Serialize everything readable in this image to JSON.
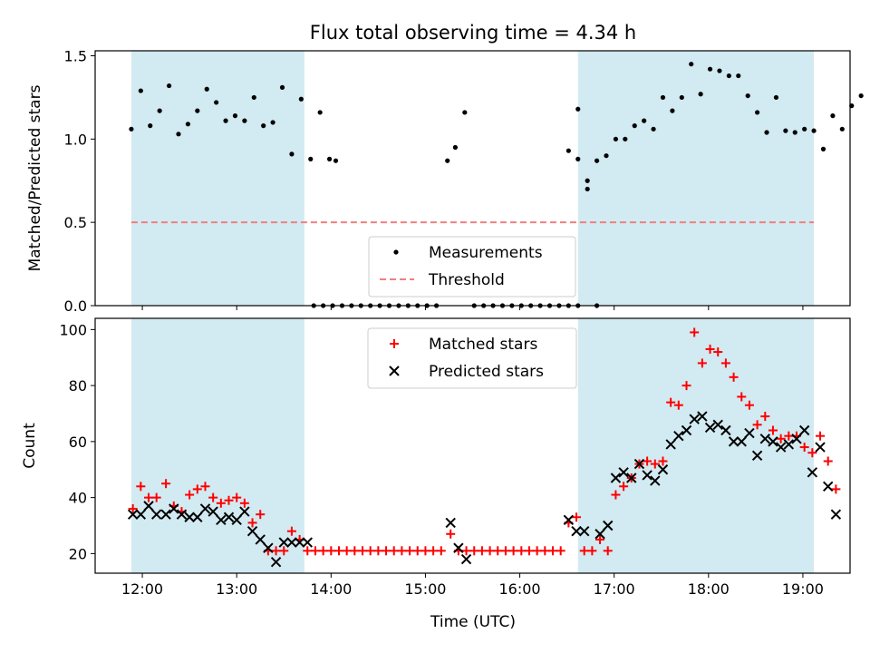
{
  "figure": {
    "title": "Flux total observing time = 4.34 h",
    "xlabel": "Time (UTC)"
  },
  "colors": {
    "shade": "#add8e6",
    "threshold": "#f08080",
    "matched": "#ff0000",
    "predicted": "#000000",
    "measure": "#000000"
  },
  "chart_data": [
    {
      "type": "scatter",
      "ylabel": "Matched/Predicted stars",
      "xlim": [
        "11:30",
        "19:30"
      ],
      "ylim": [
        0,
        1.53
      ],
      "yticks": [
        0.0,
        0.5,
        1.0,
        1.5
      ],
      "ytick_labels": [
        "0.0",
        "0.5",
        "1.0",
        "1.5"
      ],
      "xticks": [
        "12:00",
        "13:00",
        "14:00",
        "15:00",
        "16:00",
        "17:00",
        "18:00",
        "19:00"
      ],
      "shaded_spans": [
        [
          "11:53",
          "13:43"
        ],
        [
          "16:37",
          "19:07"
        ]
      ],
      "threshold": 0.5,
      "legend": {
        "position": "lower-center",
        "entries": [
          "Measurements",
          "Threshold"
        ]
      },
      "series": [
        {
          "name": "Measurements",
          "points": [
            [
              "11:53",
              1.06
            ],
            [
              "11:59",
              1.29
            ],
            [
              "12:05",
              1.08
            ],
            [
              "12:11",
              1.17
            ],
            [
              "12:17",
              1.32
            ],
            [
              "12:23",
              1.03
            ],
            [
              "12:29",
              1.09
            ],
            [
              "12:35",
              1.17
            ],
            [
              "12:41",
              1.3
            ],
            [
              "12:47",
              1.22
            ],
            [
              "12:53",
              1.11
            ],
            [
              "12:59",
              1.14
            ],
            [
              "13:05",
              1.11
            ],
            [
              "13:11",
              1.25
            ],
            [
              "13:17",
              1.08
            ],
            [
              "13:23",
              1.1
            ],
            [
              "13:29",
              1.31
            ],
            [
              "13:35",
              0.91
            ],
            [
              "13:41",
              1.24
            ],
            [
              "13:47",
              0.88
            ],
            [
              "13:53",
              1.16
            ],
            [
              "13:59",
              0.88
            ],
            [
              "14:03",
              0.87
            ],
            [
              "13:49",
              0
            ],
            [
              "13:55",
              0
            ],
            [
              "14:01",
              0
            ],
            [
              "14:07",
              0
            ],
            [
              "14:13",
              0
            ],
            [
              "14:19",
              0
            ],
            [
              "14:25",
              0
            ],
            [
              "14:31",
              0
            ],
            [
              "14:37",
              0
            ],
            [
              "14:43",
              0
            ],
            [
              "14:49",
              0
            ],
            [
              "14:55",
              0
            ],
            [
              "15:01",
              0
            ],
            [
              "15:07",
              0
            ],
            [
              "15:14",
              0.87
            ],
            [
              "15:19",
              0.95
            ],
            [
              "15:25",
              1.16
            ],
            [
              "15:31",
              0
            ],
            [
              "15:37",
              0
            ],
            [
              "15:43",
              0
            ],
            [
              "15:49",
              0
            ],
            [
              "15:55",
              0
            ],
            [
              "16:01",
              0
            ],
            [
              "16:07",
              0
            ],
            [
              "16:13",
              0
            ],
            [
              "16:19",
              0
            ],
            [
              "16:25",
              0
            ],
            [
              "16:31",
              0
            ],
            [
              "16:37",
              0
            ],
            [
              "16:31",
              0.93
            ],
            [
              "16:37",
              1.18
            ],
            [
              "16:43",
              0.75
            ],
            [
              "16:49",
              0
            ],
            [
              "16:37",
              0.88
            ],
            [
              "16:43",
              0.7
            ],
            [
              "16:49",
              0.87
            ],
            [
              "16:55",
              0.9
            ],
            [
              "17:01",
              1.0
            ],
            [
              "17:07",
              1.0
            ],
            [
              "17:13",
              1.08
            ],
            [
              "17:19",
              1.11
            ],
            [
              "17:25",
              1.06
            ],
            [
              "17:31",
              1.25
            ],
            [
              "17:37",
              1.17
            ],
            [
              "17:43",
              1.25
            ],
            [
              "17:49",
              1.45
            ],
            [
              "17:55",
              1.27
            ],
            [
              "18:01",
              1.42
            ],
            [
              "18:07",
              1.41
            ],
            [
              "18:13",
              1.38
            ],
            [
              "18:19",
              1.38
            ],
            [
              "18:25",
              1.26
            ],
            [
              "18:31",
              1.16
            ],
            [
              "18:37",
              1.04
            ],
            [
              "18:43",
              1.25
            ],
            [
              "18:49",
              1.05
            ],
            [
              "18:55",
              1.04
            ],
            [
              "19:01",
              1.06
            ],
            [
              "19:07",
              1.05
            ],
            [
              "19:13",
              0.94
            ],
            [
              "19:19",
              1.14
            ],
            [
              "19:25",
              1.06
            ],
            [
              "19:31",
              1.2
            ],
            [
              "19:37",
              1.26
            ]
          ]
        }
      ]
    },
    {
      "type": "scatter",
      "ylabel": "Count",
      "xlim": [
        "11:30",
        "19:30"
      ],
      "ylim": [
        13,
        104
      ],
      "yticks": [
        20,
        40,
        60,
        80,
        100
      ],
      "xticks": [
        "12:00",
        "13:00",
        "14:00",
        "15:00",
        "16:00",
        "17:00",
        "18:00",
        "19:00"
      ],
      "shaded_spans": [
        [
          "11:53",
          "13:43"
        ],
        [
          "16:37",
          "19:07"
        ]
      ],
      "legend": {
        "position": "upper-center",
        "entries": [
          "Matched stars",
          "Predicted stars"
        ]
      },
      "series": [
        {
          "name": "Matched stars",
          "points": [
            [
              "11:54",
              36
            ],
            [
              "11:59",
              44
            ],
            [
              "12:04",
              40
            ],
            [
              "12:09",
              40
            ],
            [
              "12:15",
              45
            ],
            [
              "12:20",
              37
            ],
            [
              "12:25",
              35
            ],
            [
              "12:30",
              41
            ],
            [
              "12:35",
              43
            ],
            [
              "12:40",
              44
            ],
            [
              "12:45",
              40
            ],
            [
              "12:50",
              38
            ],
            [
              "12:55",
              39
            ],
            [
              "13:00",
              40
            ],
            [
              "13:05",
              38
            ],
            [
              "13:10",
              31
            ],
            [
              "13:15",
              34
            ],
            [
              "13:20",
              21
            ],
            [
              "13:25",
              21
            ],
            [
              "13:30",
              21
            ],
            [
              "13:35",
              28
            ],
            [
              "13:40",
              25
            ],
            [
              "13:45",
              21
            ],
            [
              "13:50",
              21
            ],
            [
              "13:55",
              21
            ],
            [
              "14:00",
              21
            ],
            [
              "14:05",
              21
            ],
            [
              "14:10",
              21
            ],
            [
              "14:15",
              21
            ],
            [
              "14:20",
              21
            ],
            [
              "14:25",
              21
            ],
            [
              "14:30",
              21
            ],
            [
              "14:35",
              21
            ],
            [
              "14:40",
              21
            ],
            [
              "14:45",
              21
            ],
            [
              "14:50",
              21
            ],
            [
              "14:55",
              21
            ],
            [
              "15:00",
              21
            ],
            [
              "15:05",
              21
            ],
            [
              "15:10",
              21
            ],
            [
              "15:16",
              27
            ],
            [
              "15:21",
              21
            ],
            [
              "15:26",
              21
            ],
            [
              "15:31",
              21
            ],
            [
              "15:36",
              21
            ],
            [
              "15:41",
              21
            ],
            [
              "15:46",
              21
            ],
            [
              "15:51",
              21
            ],
            [
              "15:56",
              21
            ],
            [
              "16:01",
              21
            ],
            [
              "16:06",
              21
            ],
            [
              "16:11",
              21
            ],
            [
              "16:16",
              21
            ],
            [
              "16:21",
              21
            ],
            [
              "16:26",
              21
            ],
            [
              "16:31",
              31
            ],
            [
              "16:36",
              33
            ],
            [
              "16:41",
              21
            ],
            [
              "16:46",
              21
            ],
            [
              "16:51",
              25
            ],
            [
              "16:56",
              21
            ],
            [
              "17:01",
              41
            ],
            [
              "17:06",
              44
            ],
            [
              "17:11",
              47
            ],
            [
              "17:16",
              52
            ],
            [
              "17:21",
              53
            ],
            [
              "17:26",
              52
            ],
            [
              "17:31",
              53
            ],
            [
              "17:36",
              74
            ],
            [
              "17:41",
              73
            ],
            [
              "17:46",
              80
            ],
            [
              "17:51",
              99
            ],
            [
              "17:56",
              88
            ],
            [
              "18:01",
              93
            ],
            [
              "18:06",
              92
            ],
            [
              "18:11",
              88
            ],
            [
              "18:16",
              83
            ],
            [
              "18:21",
              76
            ],
            [
              "18:26",
              73
            ],
            [
              "18:31",
              66
            ],
            [
              "18:36",
              69
            ],
            [
              "18:41",
              64
            ],
            [
              "18:46",
              61
            ],
            [
              "18:51",
              62
            ],
            [
              "18:56",
              62
            ],
            [
              "19:01",
              58
            ],
            [
              "19:06",
              56
            ],
            [
              "19:11",
              62
            ],
            [
              "19:16",
              53
            ],
            [
              "19:21",
              43
            ]
          ]
        },
        {
          "name": "Predicted stars",
          "points": [
            [
              "11:54",
              34
            ],
            [
              "11:59",
              34
            ],
            [
              "12:04",
              37
            ],
            [
              "12:09",
              34
            ],
            [
              "12:15",
              34
            ],
            [
              "12:20",
              36
            ],
            [
              "12:25",
              34
            ],
            [
              "12:30",
              33
            ],
            [
              "12:35",
              33
            ],
            [
              "12:40",
              36
            ],
            [
              "12:45",
              35
            ],
            [
              "12:50",
              32
            ],
            [
              "12:55",
              33
            ],
            [
              "13:00",
              32
            ],
            [
              "13:05",
              35
            ],
            [
              "13:10",
              28
            ],
            [
              "13:15",
              25
            ],
            [
              "13:20",
              22
            ],
            [
              "13:25",
              17
            ],
            [
              "13:30",
              24
            ],
            [
              "13:35",
              24
            ],
            [
              "13:40",
              24
            ],
            [
              "13:45",
              24
            ],
            [
              "15:16",
              31
            ],
            [
              "15:21",
              22
            ],
            [
              "15:26",
              18
            ],
            [
              "16:31",
              32
            ],
            [
              "16:36",
              28
            ],
            [
              "16:41",
              28
            ],
            [
              "16:51",
              27
            ],
            [
              "16:56",
              30
            ],
            [
              "17:01",
              47
            ],
            [
              "17:06",
              49
            ],
            [
              "17:11",
              47
            ],
            [
              "17:16",
              52
            ],
            [
              "17:21",
              48
            ],
            [
              "17:26",
              46
            ],
            [
              "17:31",
              50
            ],
            [
              "17:36",
              59
            ],
            [
              "17:41",
              62
            ],
            [
              "17:46",
              64
            ],
            [
              "17:51",
              68
            ],
            [
              "17:56",
              69
            ],
            [
              "18:01",
              65
            ],
            [
              "18:06",
              66
            ],
            [
              "18:11",
              64
            ],
            [
              "18:16",
              60
            ],
            [
              "18:21",
              60
            ],
            [
              "18:26",
              63
            ],
            [
              "18:31",
              55
            ],
            [
              "18:36",
              61
            ],
            [
              "18:41",
              60
            ],
            [
              "18:46",
              58
            ],
            [
              "18:51",
              59
            ],
            [
              "18:56",
              61
            ],
            [
              "19:01",
              64
            ],
            [
              "19:06",
              49
            ],
            [
              "19:11",
              58
            ],
            [
              "19:16",
              44
            ],
            [
              "19:21",
              34
            ]
          ]
        }
      ]
    }
  ]
}
